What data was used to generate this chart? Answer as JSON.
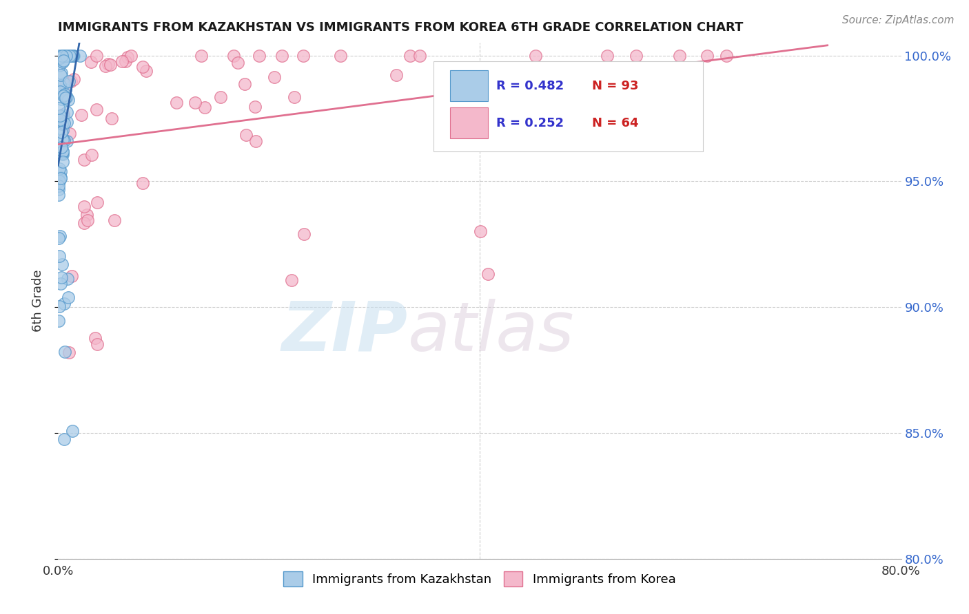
{
  "title": "IMMIGRANTS FROM KAZAKHSTAN VS IMMIGRANTS FROM KOREA 6TH GRADE CORRELATION CHART",
  "source_text": "Source: ZipAtlas.com",
  "ylabel": "6th Grade",
  "x_min": 0.0,
  "x_max": 0.8,
  "y_min": 0.8,
  "y_max": 1.005,
  "y_ticks": [
    0.8,
    0.85,
    0.9,
    0.95,
    1.0
  ],
  "y_tick_labels": [
    "80.0%",
    "85.0%",
    "90.0%",
    "95.0%",
    "100.0%"
  ],
  "kazakhstan_color": "#aacce8",
  "korea_color": "#f4b8cb",
  "kazakhstan_edge": "#5599cc",
  "korea_edge": "#e07090",
  "trend_kazakhstan_color": "#3366aa",
  "trend_korea_color": "#e07090",
  "R_kazakhstan": 0.482,
  "N_kazakhstan": 93,
  "R_korea": 0.252,
  "N_korea": 64,
  "legend_color": "#3333cc",
  "watermark_zip": "ZIP",
  "watermark_atlas": "atlas",
  "background_color": "#ffffff",
  "grid_color": "#cccccc"
}
